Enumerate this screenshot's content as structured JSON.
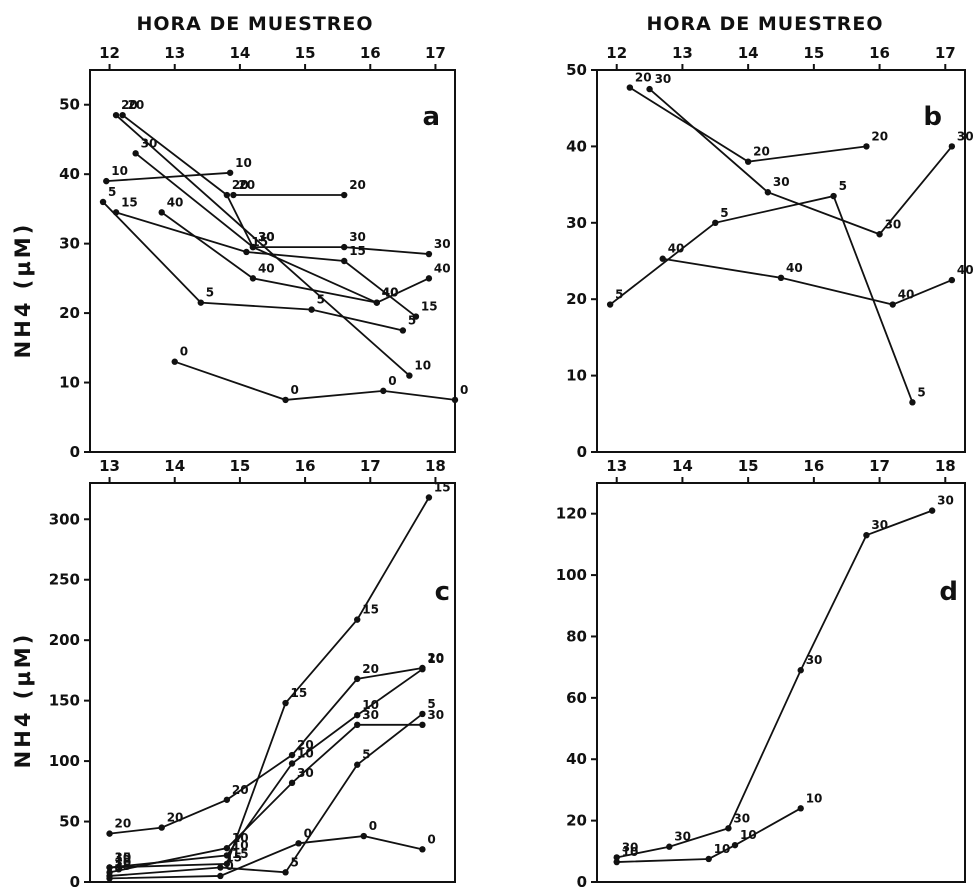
{
  "top_axis_title": "HORA DE MUESTREO",
  "ylabel": "NH4 (µM)",
  "chart_data": [
    {
      "type": "line",
      "label": "a",
      "xlim": [
        11.7,
        17.3
      ],
      "ylim": [
        0,
        55
      ],
      "xticks": [
        12,
        13,
        14,
        15,
        16,
        17
      ],
      "yticks": [
        0,
        10,
        20,
        30,
        40,
        50
      ],
      "series": [
        {
          "points": [
            [
              12.2,
              48.5
            ],
            [
              13.8,
              37
            ],
            [
              14.2,
              29.5
            ],
            [
              16.1,
              21.5
            ],
            [
              16.9,
              25
            ]
          ],
          "labels": [
            "20",
            "20",
            "30",
            "40",
            "40"
          ]
        },
        {
          "points": [
            [
              12.1,
              48.5
            ],
            [
              16.6,
              11
            ]
          ],
          "labels": [
            "20",
            "10"
          ]
        },
        {
          "points": [
            [
              13.9,
              37
            ],
            [
              15.6,
              37
            ]
          ],
          "labels": [
            "20",
            "20"
          ]
        },
        {
          "points": [
            [
              11.95,
              39
            ],
            [
              13.85,
              40.2
            ]
          ],
          "labels": [
            "10",
            "10"
          ]
        },
        {
          "points": [
            [
              12.4,
              43
            ],
            [
              14.2,
              29.5
            ],
            [
              15.6,
              29.5
            ],
            [
              16.9,
              28.5
            ]
          ],
          "labels": [
            "30",
            "30",
            "30",
            "30"
          ]
        },
        {
          "points": [
            [
              12.1,
              34.5
            ],
            [
              14.1,
              28.8
            ],
            [
              15.6,
              27.5
            ],
            [
              16.7,
              19.5
            ]
          ],
          "labels": [
            "15",
            "15",
            "15",
            "15"
          ]
        },
        {
          "points": [
            [
              12.8,
              34.5
            ],
            [
              14.2,
              25
            ],
            [
              16.1,
              21.5
            ]
          ],
          "labels": [
            "40",
            "40",
            "40"
          ]
        },
        {
          "points": [
            [
              11.9,
              36
            ],
            [
              13.4,
              21.5
            ],
            [
              15.1,
              20.5
            ],
            [
              16.5,
              17.5
            ]
          ],
          "labels": [
            "5",
            "5",
            "5",
            "5"
          ]
        },
        {
          "points": [
            [
              13.0,
              13
            ],
            [
              14.7,
              7.5
            ],
            [
              16.2,
              8.8
            ],
            [
              17.3,
              7.5
            ]
          ],
          "labels": [
            "0",
            "0",
            "0",
            "0"
          ]
        }
      ]
    },
    {
      "type": "line",
      "label": "b",
      "xlim": [
        11.7,
        17.3
      ],
      "ylim": [
        0,
        50
      ],
      "xticks": [
        12,
        13,
        14,
        15,
        16,
        17
      ],
      "yticks": [
        0,
        10,
        20,
        30,
        40,
        50
      ],
      "series": [
        {
          "points": [
            [
              12.2,
              47.7
            ],
            [
              14.0,
              38
            ],
            [
              15.8,
              40
            ]
          ],
          "labels": [
            "20",
            "20",
            "20"
          ]
        },
        {
          "points": [
            [
              12.5,
              47.5
            ],
            [
              14.3,
              34
            ],
            [
              16.0,
              28.5
            ],
            [
              17.1,
              40
            ]
          ],
          "labels": [
            "30",
            "30",
            "30",
            "30"
          ]
        },
        {
          "points": [
            [
              11.9,
              19.3
            ],
            [
              13.5,
              30
            ],
            [
              15.3,
              33.5
            ],
            [
              16.5,
              6.5
            ]
          ],
          "labels": [
            "5",
            "5",
            "5",
            "5"
          ]
        },
        {
          "points": [
            [
              12.7,
              25.3
            ],
            [
              14.5,
              22.8
            ],
            [
              16.2,
              19.3
            ],
            [
              17.1,
              22.5
            ]
          ],
          "labels": [
            "40",
            "40",
            "40",
            "40"
          ]
        }
      ]
    },
    {
      "type": "line",
      "label": "c",
      "xlim": [
        12.7,
        18.3
      ],
      "ylim": [
        0,
        330
      ],
      "xticks": [
        13,
        14,
        15,
        16,
        17,
        18
      ],
      "yticks": [
        0,
        50,
        100,
        150,
        200,
        250,
        300
      ],
      "series": [
        {
          "points": [
            [
              13.0,
              40
            ],
            [
              13.8,
              45
            ],
            [
              14.8,
              68
            ],
            [
              15.8,
              105
            ],
            [
              16.8,
              168
            ],
            [
              17.8,
              177
            ]
          ],
          "labels": [
            "20",
            "20",
            "20",
            "20",
            "20",
            "20"
          ]
        },
        {
          "points": [
            [
              13.0,
              12
            ],
            [
              14.8,
              15
            ],
            [
              15.7,
              148
            ],
            [
              16.8,
              217
            ],
            [
              17.9,
              318
            ]
          ],
          "labels": [
            "15",
            "15",
            "15",
            "15",
            "15"
          ]
        },
        {
          "points": [
            [
              13.0,
              12
            ],
            [
              14.8,
              22
            ],
            [
              15.8,
              98
            ],
            [
              16.8,
              138
            ],
            [
              17.8,
              176
            ]
          ],
          "labels": [
            "30",
            "10",
            "10",
            "10",
            "10"
          ]
        },
        {
          "points": [
            [
              13.0,
              8
            ],
            [
              14.8,
              28
            ],
            [
              15.8,
              82
            ],
            [
              16.8,
              130
            ],
            [
              17.8,
              130
            ]
          ],
          "labels": [
            "30",
            "10",
            "30",
            "30",
            "30"
          ]
        },
        {
          "points": [
            [
              13.0,
              5
            ],
            [
              14.7,
              12
            ],
            [
              15.7,
              8
            ],
            [
              16.8,
              97
            ],
            [
              17.8,
              139
            ]
          ],
          "labels": [
            "15",
            "15",
            "5",
            "5",
            "5"
          ]
        },
        {
          "points": [
            [
              13.0,
              3
            ],
            [
              14.7,
              5
            ],
            [
              15.9,
              32
            ],
            [
              16.9,
              38
            ],
            [
              17.8,
              27
            ]
          ],
          "labels": [
            "0",
            "0",
            "0",
            "0",
            "0"
          ]
        }
      ]
    },
    {
      "type": "line",
      "label": "d",
      "xlim": [
        12.7,
        18.3
      ],
      "ylim": [
        0,
        130
      ],
      "xticks": [
        13,
        14,
        15,
        16,
        17,
        18
      ],
      "yticks": [
        0,
        20,
        40,
        60,
        80,
        100,
        120
      ],
      "series": [
        {
          "points": [
            [
              13.0,
              8
            ],
            [
              13.8,
              11.5
            ],
            [
              14.7,
              17.5
            ],
            [
              15.8,
              69
            ],
            [
              16.8,
              113
            ],
            [
              17.8,
              121
            ]
          ],
          "labels": [
            "30",
            "30",
            "30",
            "30",
            "30",
            "30"
          ]
        },
        {
          "points": [
            [
              13.0,
              6.5
            ],
            [
              14.4,
              7.5
            ],
            [
              14.8,
              12
            ],
            [
              15.8,
              24
            ]
          ],
          "labels": [
            "10",
            "10",
            "10",
            "10"
          ]
        }
      ]
    }
  ]
}
